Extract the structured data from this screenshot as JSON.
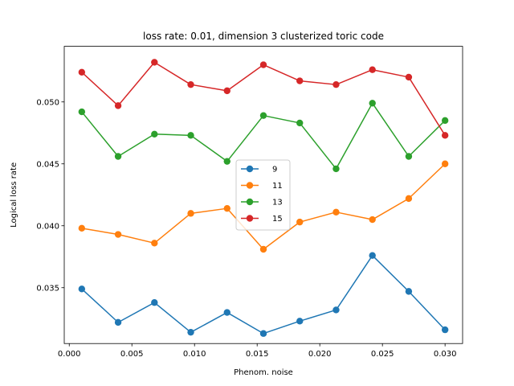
{
  "chart_data": {
    "type": "line",
    "title": "loss rate: 0.01, dimension 3 clusterized toric code",
    "xlabel": "Phenom. noise",
    "ylabel": "Logical loss rate",
    "xlim": [
      -0.0004,
      0.0314
    ],
    "ylim": [
      0.03049,
      0.05449
    ],
    "xticks": [
      "0.000",
      "0.005",
      "0.010",
      "0.015",
      "0.020",
      "0.025",
      "0.030"
    ],
    "xtick_values": [
      0.0,
      0.005,
      0.01,
      0.015,
      0.02,
      0.025,
      0.03
    ],
    "yticks": [
      "0.035",
      "0.040",
      "0.045",
      "0.050"
    ],
    "ytick_values": [
      0.035,
      0.04,
      0.045,
      0.05
    ],
    "grid": false,
    "legend_position": "center",
    "x": [
      0.001,
      0.0039,
      0.0068,
      0.0097,
      0.0126,
      0.0155,
      0.0184,
      0.0213,
      0.0242,
      0.0271,
      0.03
    ],
    "series": [
      {
        "name": "9",
        "color": "#1f77b4",
        "values": [
          0.0349,
          0.0322,
          0.0338,
          0.0314,
          0.033,
          0.0313,
          0.0323,
          0.0332,
          0.0376,
          0.0347,
          0.0316
        ]
      },
      {
        "name": "11",
        "color": "#ff7f0e",
        "values": [
          0.0398,
          0.0393,
          0.0386,
          0.041,
          0.0414,
          0.0381,
          0.0403,
          0.0411,
          0.0405,
          0.0422,
          0.045
        ]
      },
      {
        "name": "13",
        "color": "#2ca02c",
        "values": [
          0.0492,
          0.0456,
          0.0474,
          0.0473,
          0.0452,
          0.0489,
          0.0483,
          0.0446,
          0.0499,
          0.0456,
          0.0485
        ]
      },
      {
        "name": "15",
        "color": "#d62728",
        "values": [
          0.0524,
          0.0497,
          0.0532,
          0.0514,
          0.0509,
          0.053,
          0.0517,
          0.0514,
          0.0526,
          0.052,
          0.0473
        ]
      }
    ]
  }
}
